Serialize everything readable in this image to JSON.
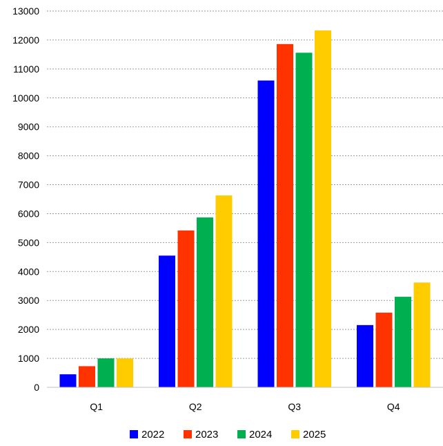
{
  "chart_data": {
    "type": "bar",
    "title": "",
    "xlabel": "",
    "ylabel": "",
    "ylim": [
      0,
      13000
    ],
    "ytick_step": 1000,
    "grid": "horizontal dashed",
    "legend_position": "bottom",
    "categories": [
      "Q1",
      "Q2",
      "Q3",
      "Q4"
    ],
    "series": [
      {
        "name": "2022",
        "color": "#0000FF",
        "values": [
          450,
          4550,
          10600,
          2150
        ]
      },
      {
        "name": "2023",
        "color": "#FF3300",
        "values": [
          730,
          5420,
          11860,
          2580
        ]
      },
      {
        "name": "2024",
        "color": "#00B050",
        "values": [
          1000,
          5870,
          11560,
          3130
        ]
      },
      {
        "name": "2025",
        "color": "#FFCC00",
        "values": [
          1000,
          6630,
          12330,
          3620
        ]
      }
    ]
  }
}
